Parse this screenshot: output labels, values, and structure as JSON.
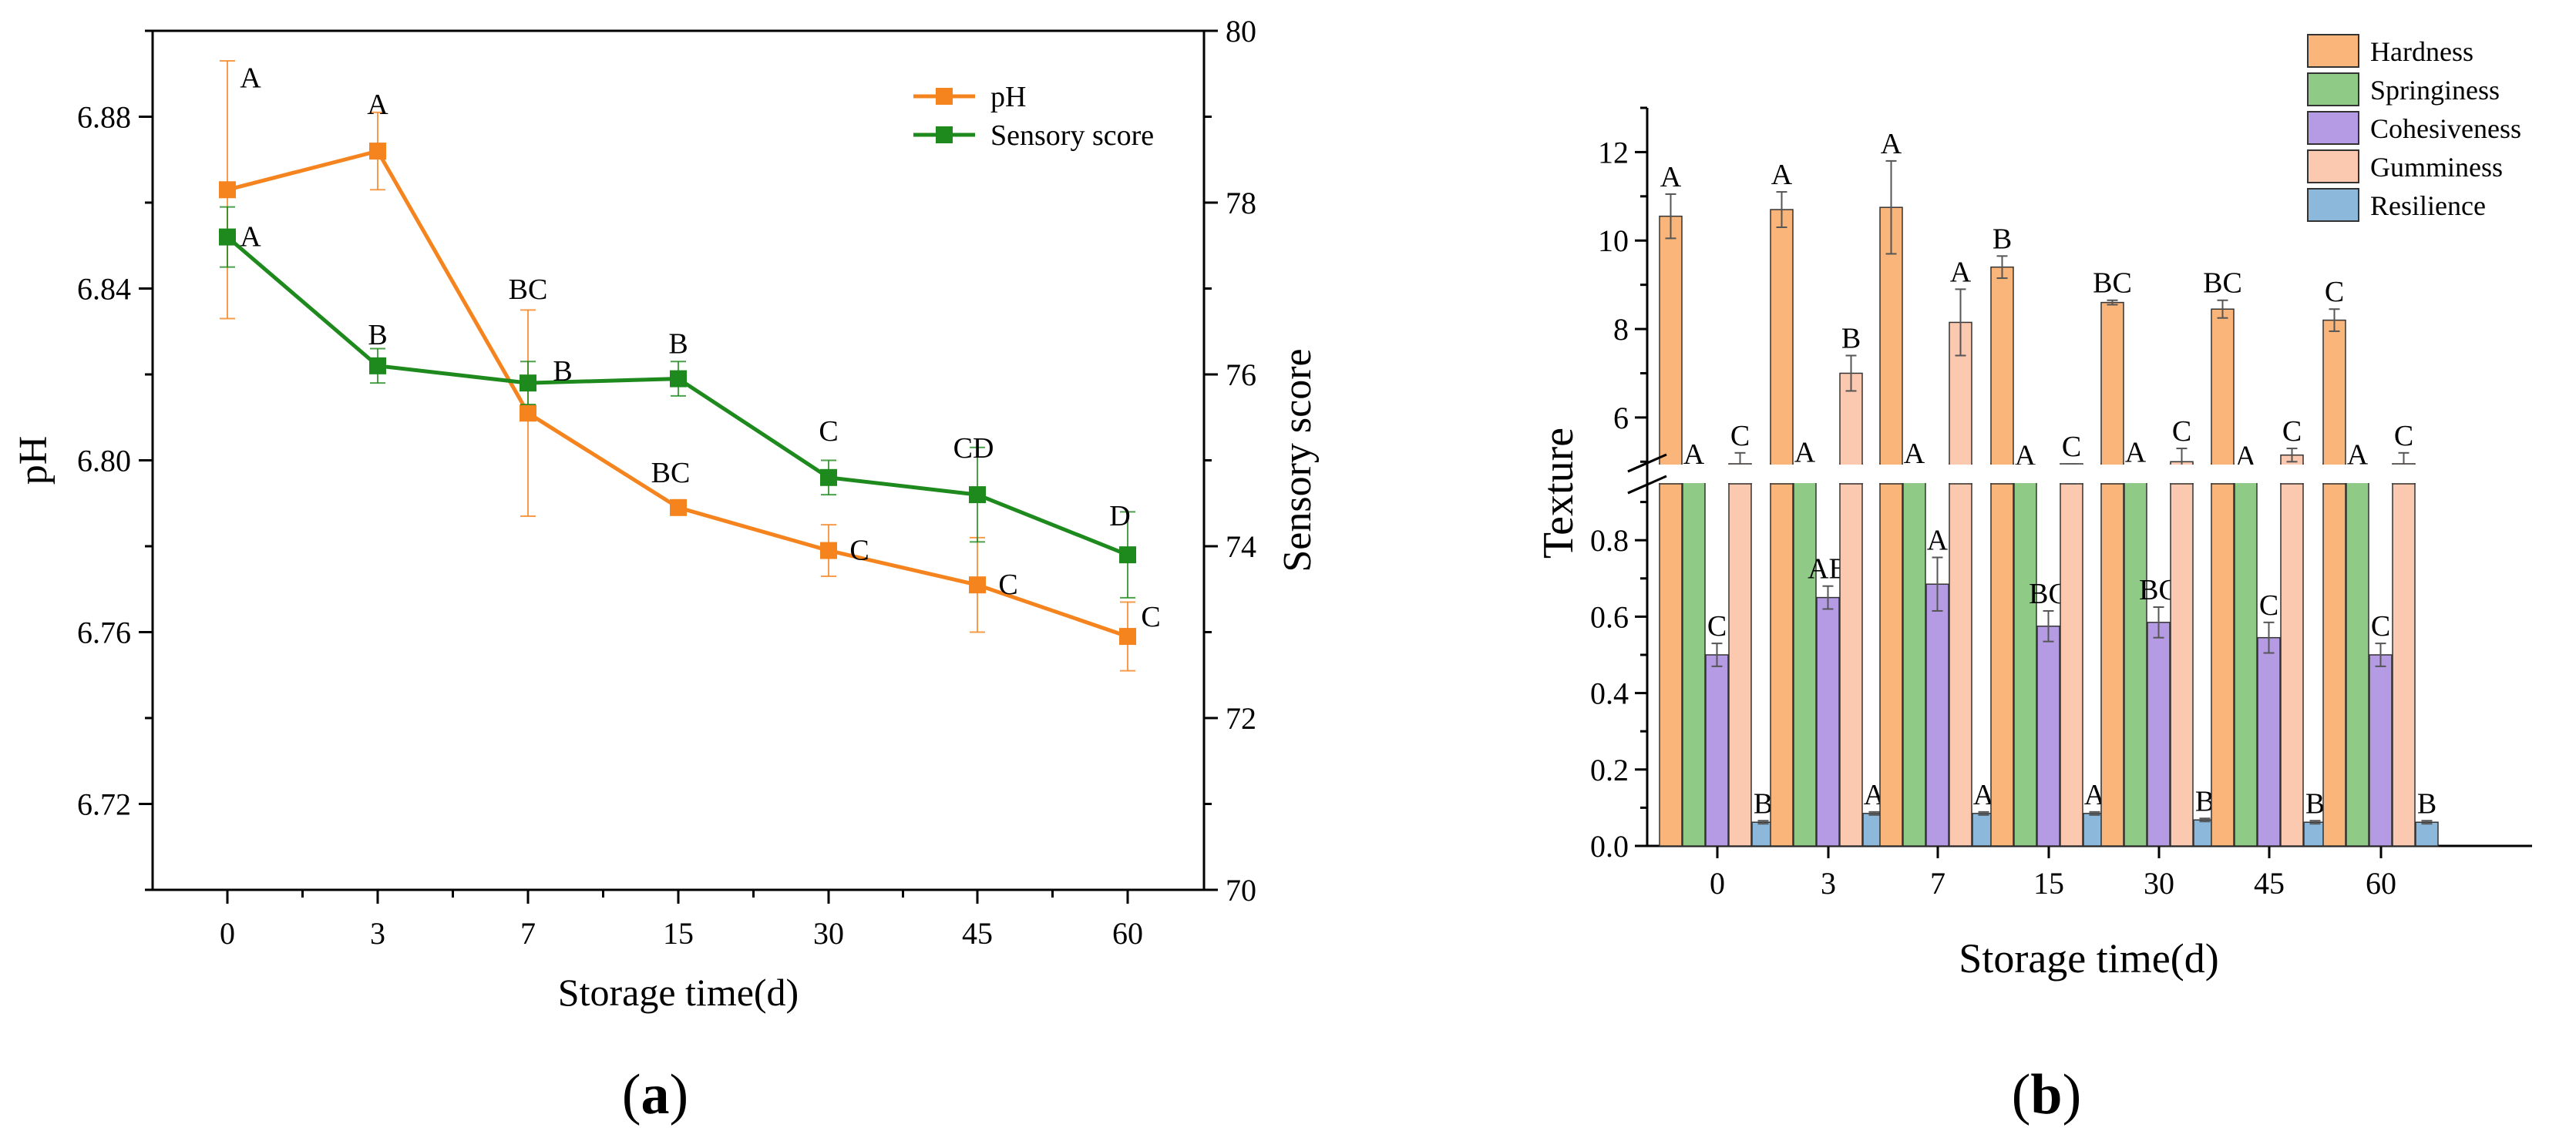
{
  "chart_data": [
    {
      "type": "line",
      "panel_label": "(a)",
      "panel_letter": "a",
      "xlabel": "Storage time(d)",
      "ylabel": "pH",
      "y2label": "Sensory score",
      "categories": [
        "0",
        "3",
        "7",
        "15",
        "30",
        "45",
        "60"
      ],
      "ylim": [
        6.7,
        6.9
      ],
      "yticks": [
        "6.72",
        "6.76",
        "6.80",
        "6.84",
        "6.88"
      ],
      "y2lim": [
        70,
        80
      ],
      "y2ticks": [
        "70",
        "72",
        "74",
        "76",
        "78",
        "80"
      ],
      "legend_position": "top-right",
      "series": [
        {
          "name": "pH",
          "axis": "left",
          "color": "#F5841F",
          "values": [
            6.863,
            6.872,
            6.811,
            6.789,
            6.779,
            6.771,
            6.759
          ],
          "errors": [
            0.03,
            0.009,
            0.024,
            0.001,
            0.006,
            0.011,
            0.008
          ],
          "labels": [
            "A",
            "A",
            "BC",
            "BC",
            "C",
            "C",
            "C"
          ]
        },
        {
          "name": "Sensory score",
          "axis": "right",
          "color": "#1E8A1E",
          "values": [
            77.6,
            76.1,
            75.9,
            75.95,
            74.8,
            74.6,
            73.9
          ],
          "errors": [
            0.35,
            0.2,
            0.25,
            0.2,
            0.2,
            0.55,
            0.5
          ],
          "labels": [
            "A",
            "B",
            "B",
            "B",
            "C",
            "CD",
            "D"
          ]
        }
      ]
    },
    {
      "type": "bar",
      "panel_label": "(b)",
      "panel_letter": "b",
      "xlabel": "Storage time(d)",
      "ylabel": "Texture",
      "categories": [
        "0",
        "3",
        "7",
        "15",
        "30",
        "45",
        "60"
      ],
      "axis_break": {
        "lower": [
          0,
          1.0
        ],
        "upper": [
          4.5,
          13
        ]
      },
      "yticks_lower": [
        "0.0",
        "0.2",
        "0.4",
        "0.6",
        "0.8"
      ],
      "yticks_upper": [
        "6",
        "8",
        "10",
        "12"
      ],
      "legend_position": "top-right",
      "series": [
        {
          "name": "Hardness",
          "color": "#F9B57A",
          "values": [
            10.55,
            10.7,
            10.75,
            9.4,
            8.6,
            8.45,
            8.2
          ],
          "errors": [
            0.5,
            0.4,
            1.05,
            0.25,
            0.05,
            0.2,
            0.25
          ],
          "labels": [
            "A",
            "A",
            "A",
            "B",
            "BC",
            "BC",
            "C"
          ]
        },
        {
          "name": "Springiness",
          "color": "#8FCB86",
          "values": [
            0.975,
            0.98,
            0.977,
            0.972,
            0.98,
            0.97,
            0.974
          ],
          "errors": [
            0.005,
            0.005,
            0.005,
            0.005,
            0.005,
            0.005,
            0.005
          ],
          "labels": [
            "A",
            "A",
            "A",
            "A",
            "A",
            "A",
            "A"
          ]
        },
        {
          "name": "Cohesiveness",
          "color": "#B49BE3",
          "values": [
            0.5,
            0.65,
            0.685,
            0.575,
            0.585,
            0.545,
            0.5
          ],
          "errors": [
            0.03,
            0.03,
            0.07,
            0.04,
            0.04,
            0.04,
            0.03
          ],
          "labels": [
            "C",
            "AB",
            "A",
            "BC",
            "BC",
            "C",
            "C"
          ]
        },
        {
          "name": "Gumminess",
          "color": "#FBC8B0",
          "values": [
            4.9,
            7.0,
            8.15,
            4.6,
            5.0,
            5.15,
            4.9
          ],
          "errors": [
            0.3,
            0.4,
            0.75,
            0.35,
            0.3,
            0.15,
            0.3
          ],
          "labels": [
            "C",
            "B",
            "A",
            "C",
            "C",
            "C",
            "C"
          ]
        },
        {
          "name": "Resilience",
          "color": "#8BB8DB",
          "values": [
            0.062,
            0.085,
            0.085,
            0.085,
            0.068,
            0.062,
            0.062
          ],
          "errors": [
            0.004,
            0.004,
            0.004,
            0.004,
            0.004,
            0.004,
            0.004
          ],
          "labels": [
            "B",
            "A",
            "A",
            "A",
            "B",
            "B",
            "B"
          ]
        }
      ]
    }
  ]
}
